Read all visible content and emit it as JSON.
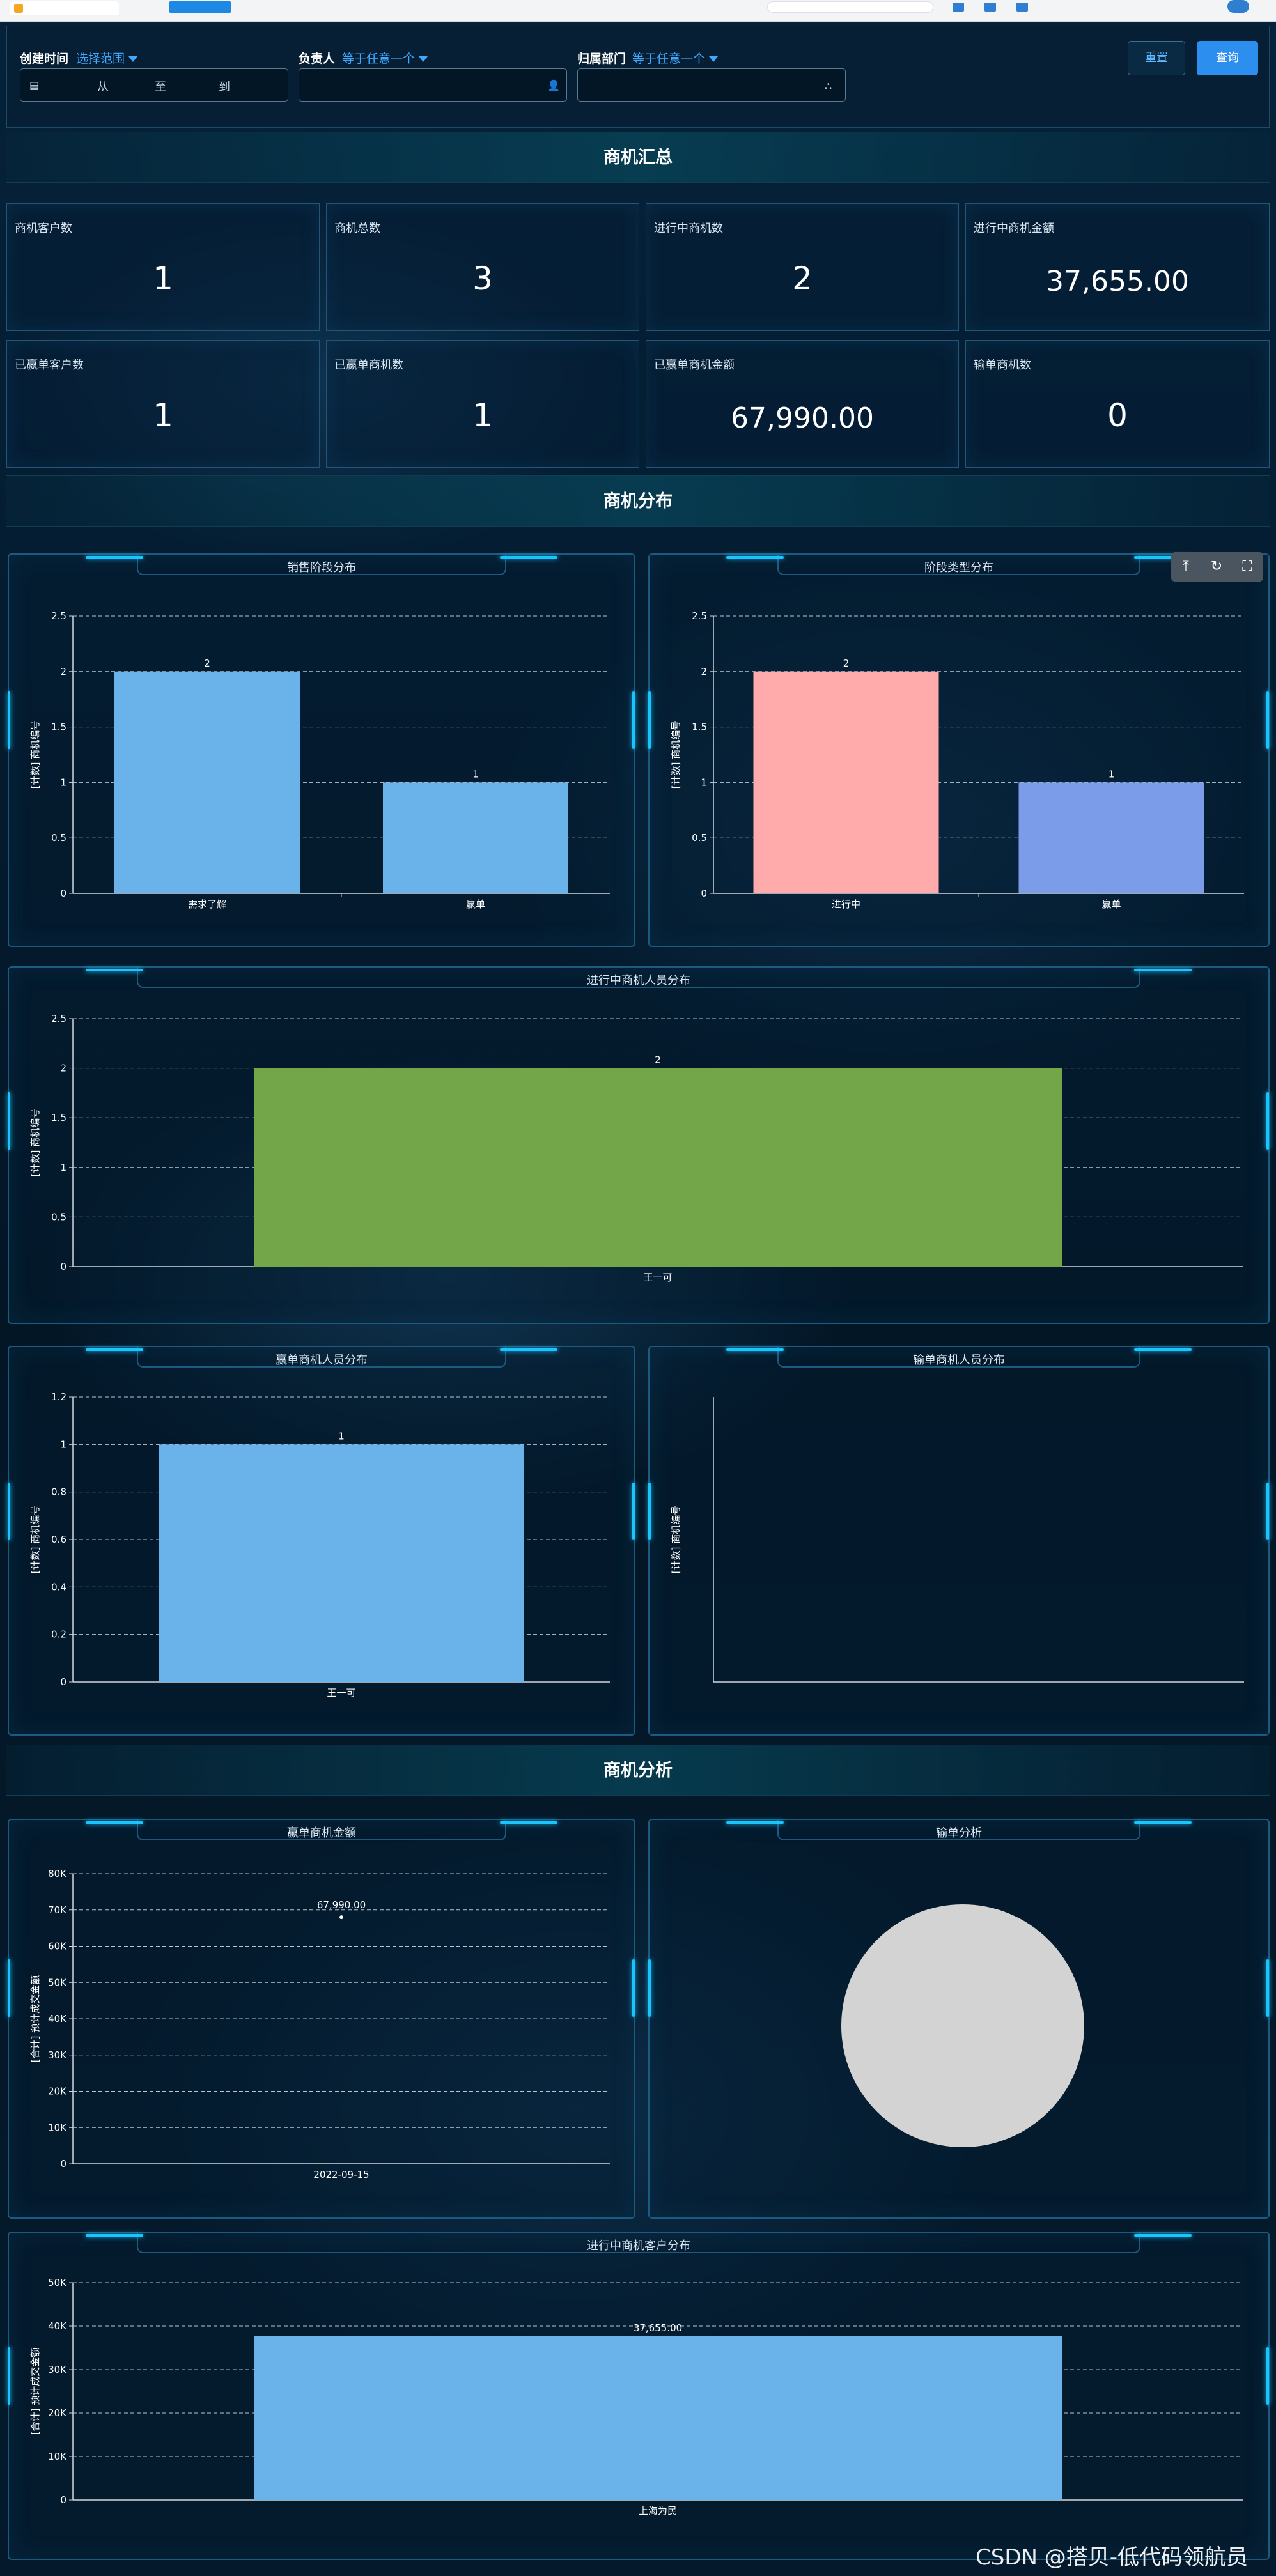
{
  "filters": {
    "created_time": {
      "label": "创建时间",
      "mode": "选择范围",
      "from": "从",
      "to": "至",
      "end": "到"
    },
    "owner": {
      "label": "负责人",
      "mode": "等于任意一个"
    },
    "department": {
      "label": "归属部门",
      "mode": "等于任意一个"
    },
    "reset_label": "重置",
    "query_label": "查询"
  },
  "sections": {
    "summary": "商机汇总",
    "distribution": "商机分布",
    "analysis": "商机分析"
  },
  "kpis": [
    {
      "label": "商机客户数",
      "value": "1"
    },
    {
      "label": "商机总数",
      "value": "3"
    },
    {
      "label": "进行中商机数",
      "value": "2"
    },
    {
      "label": "进行中商机金额",
      "value": "37,655.00"
    },
    {
      "label": "已赢单客户数",
      "value": "1"
    },
    {
      "label": "已赢单商机数",
      "value": "1"
    },
    {
      "label": "已赢单商机金额",
      "value": "67,990.00"
    },
    {
      "label": "输单商机数",
      "value": "0"
    }
  ],
  "toolbox": {
    "icons": [
      "download-icon",
      "refresh-icon",
      "fullscreen-icon"
    ],
    "glyphs": [
      "⤒",
      "↻",
      "⛶"
    ]
  },
  "colors": {
    "accent": "#2c8ff0",
    "bar_blue": "#6ab3ea",
    "bar_pink": "#ffabab",
    "bar_periwinkle": "#7b9de9",
    "bar_green": "#72a648",
    "pie_gray": "#d3d3d3"
  },
  "chart_data": [
    {
      "id": "stage",
      "title": "销售阶段分布",
      "type": "bar",
      "ylabel": "[计数] 商机编号",
      "ylim": [
        0,
        2.5
      ],
      "yticks": [
        "0",
        "0.5",
        "1",
        "1.5",
        "2",
        "2.5"
      ],
      "categories": [
        "需求了解",
        "赢单"
      ],
      "values": [
        2,
        1
      ],
      "value_labels": [
        "2",
        "1"
      ],
      "colors": [
        "#6ab3ea",
        "#6ab3ea"
      ]
    },
    {
      "id": "stage_type",
      "title": "阶段类型分布",
      "type": "bar",
      "ylabel": "[计数] 商机编号",
      "ylim": [
        0,
        2.5
      ],
      "yticks": [
        "0",
        "0.5",
        "1",
        "1.5",
        "2",
        "2.5"
      ],
      "categories": [
        "进行中",
        "赢单"
      ],
      "values": [
        2,
        1
      ],
      "value_labels": [
        "2",
        "1"
      ],
      "colors": [
        "#ffabab",
        "#7b9de9"
      ]
    },
    {
      "id": "ongoing_person",
      "title": "进行中商机人员分布",
      "type": "bar",
      "ylabel": "[计数] 商机编号",
      "ylim": [
        0,
        2.5
      ],
      "yticks": [
        "0",
        "0.5",
        "1",
        "1.5",
        "2",
        "2.5"
      ],
      "categories": [
        "王一可"
      ],
      "values": [
        2
      ],
      "value_labels": [
        "2"
      ],
      "colors": [
        "#72a648"
      ]
    },
    {
      "id": "won_person",
      "title": "赢单商机人员分布",
      "type": "bar",
      "ylabel": "[计数] 商机编号",
      "ylim": [
        0,
        1.2
      ],
      "yticks": [
        "0",
        "0.2",
        "0.4",
        "0.6",
        "0.8",
        "1",
        "1.2"
      ],
      "categories": [
        "王一可"
      ],
      "values": [
        1
      ],
      "value_labels": [
        "1"
      ],
      "colors": [
        "#6ab3ea"
      ]
    },
    {
      "id": "lost_person",
      "title": "输单商机人员分布",
      "type": "bar",
      "ylabel": "[计数] 商机编号",
      "categories": [],
      "values": [],
      "value_labels": [],
      "colors": []
    },
    {
      "id": "won_amount",
      "title": "赢单商机金额",
      "type": "scatter",
      "ylabel": "[合计] 预计成交金额",
      "ylim": [
        0,
        80000
      ],
      "yticks": [
        "0",
        "10K",
        "20K",
        "30K",
        "40K",
        "50K",
        "60K",
        "70K",
        "80K"
      ],
      "categories": [
        "2022-09-15"
      ],
      "values": [
        67990
      ],
      "value_labels": [
        "67,990.00"
      ]
    },
    {
      "id": "lost_analysis",
      "title": "输单分析",
      "type": "pie",
      "values": [
        1
      ],
      "colors": [
        "#d3d3d3"
      ]
    },
    {
      "id": "ongoing_customer",
      "title": "进行中商机客户分布",
      "type": "bar",
      "ylabel": "[合计] 预计成交金额",
      "ylim": [
        0,
        50000
      ],
      "yticks": [
        "0",
        "10K",
        "20K",
        "30K",
        "40K",
        "50K"
      ],
      "categories": [
        "上海为民"
      ],
      "values": [
        37655
      ],
      "value_labels": [
        "37,655.00"
      ],
      "colors": [
        "#6ab3ea"
      ]
    }
  ],
  "watermark": "CSDN @搭贝-低代码领航员"
}
